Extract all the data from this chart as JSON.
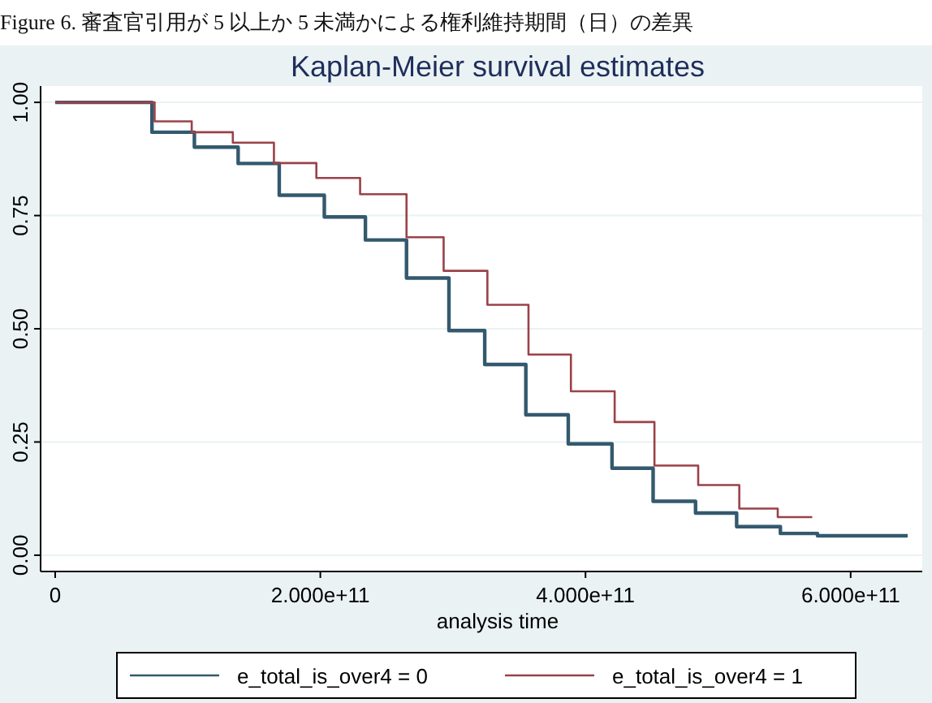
{
  "chart_data": {
    "type": "step",
    "title": "Kaplan-Meier survival estimates",
    "xlabel": "analysis time",
    "annotations": [
      "Figure 6.  審査官引用が 5 以上か 5 未満かによる権利維持期間（日）の差異"
    ],
    "series": [
      {
        "name": "e_total_is_over4 = 0",
        "color": "#33596e",
        "x": [
          0,
          73000000000.0,
          105000000000.0,
          138000000000.0,
          169000000000.0,
          203000000000.0,
          234000000000.0,
          265000000000.0,
          297000000000.0,
          324000000000.0,
          355000000000.0,
          387000000000.0,
          420000000000.0,
          451000000000.0,
          483000000000.0,
          514000000000.0,
          547000000000.0,
          575000000000.0,
          643000000000.0
        ],
        "values": [
          1,
          0.934,
          0.901,
          0.865,
          0.795,
          0.747,
          0.696,
          0.612,
          0.496,
          0.421,
          0.31,
          0.246,
          0.192,
          0.119,
          0.093,
          0.063,
          0.048,
          0.043,
          0.043
        ]
      },
      {
        "name": "e_total_is_over4 = 1",
        "color": "#9a4249",
        "x": [
          0,
          75000000000.0,
          103000000000.0,
          134000000000.0,
          165000000000.0,
          197000000000.0,
          230000000000.0,
          265000000000.0,
          293000000000.0,
          326000000000.0,
          357000000000.0,
          389000000000.0,
          422000000000.0,
          452000000000.0,
          485000000000.0,
          516000000000.0,
          545000000000.0,
          571000000000.0
        ],
        "values": [
          1,
          0.958,
          0.934,
          0.911,
          0.866,
          0.833,
          0.797,
          0.702,
          0.628,
          0.553,
          0.443,
          0.362,
          0.294,
          0.198,
          0.155,
          0.103,
          0.084,
          0.084
        ]
      }
    ],
    "xlim": [
      -11000000000.0,
      654000000000.0
    ],
    "xticks": [
      0,
      {
        "value": 200000000000.0,
        "label": "2.000e+11"
      },
      {
        "value": 400000000000.0,
        "label": "4.000e+11"
      },
      {
        "value": 600000000000.0,
        "label": "6.000e+11"
      }
    ],
    "ylim": [
      -0.036,
      1.036
    ],
    "yticks": [
      {
        "value": 0,
        "label": "0.00"
      },
      {
        "value": 0.25,
        "label": "0.25"
      },
      {
        "value": 0.5,
        "label": "0.50"
      },
      {
        "value": 0.75,
        "label": "0.75"
      },
      {
        "value": 1,
        "label": "1.00"
      }
    ],
    "grid": "y",
    "legend": "bottom",
    "line_style": "solid"
  }
}
